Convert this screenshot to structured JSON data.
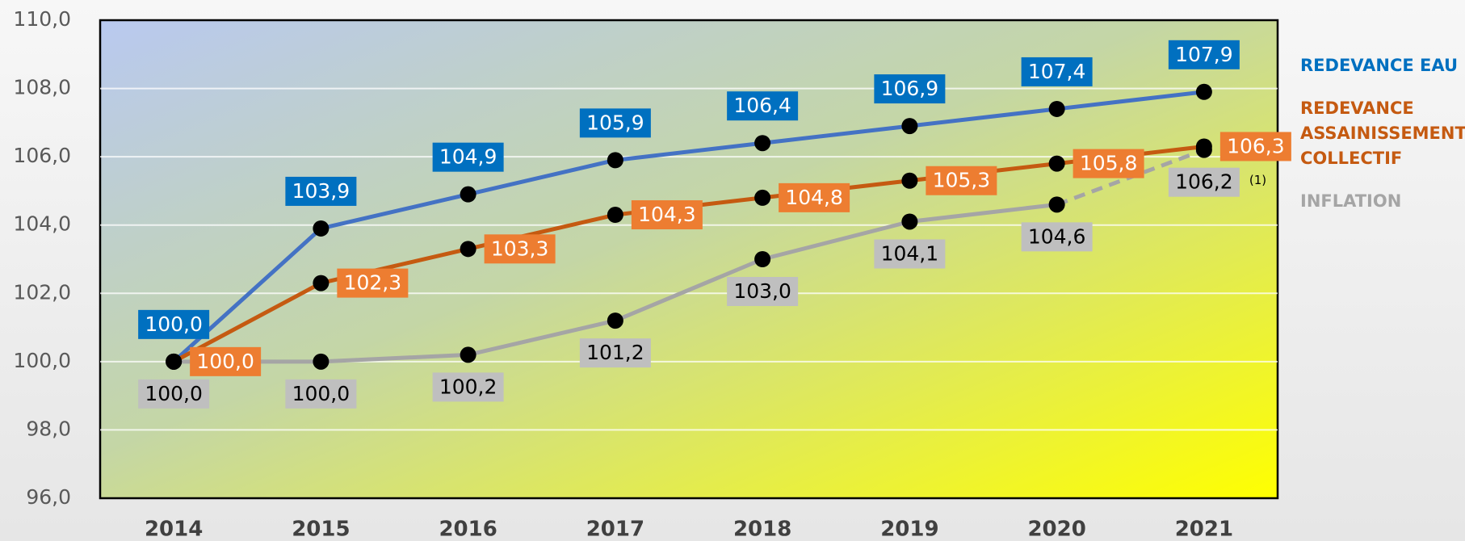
{
  "chart_data": {
    "type": "line",
    "categories": [
      "2014",
      "2015",
      "2016",
      "2017",
      "2018",
      "2019",
      "2020",
      "2021"
    ],
    "series": [
      {
        "name": "REDEVANCE EAU",
        "color": "#4472c4",
        "label_color": "#0070c0",
        "label_position": "above",
        "values": [
          100.0,
          103.9,
          104.9,
          105.9,
          106.4,
          106.9,
          107.4,
          107.9
        ],
        "value_labels": [
          "100,0",
          "103,9",
          "104,9",
          "105,9",
          "106,4",
          "106,9",
          "107,4",
          "107,9"
        ]
      },
      {
        "name": "REDEVANCE ASSAINISSEMENT COLLECTIF",
        "color": "#c55a11",
        "label_color": "#ed7d31",
        "label_position": "right",
        "values": [
          100.0,
          102.3,
          103.3,
          104.3,
          104.8,
          105.3,
          105.8,
          106.3
        ],
        "value_labels": [
          "100,0",
          "102,3",
          "103,3",
          "104,3",
          "104,8",
          "105,3",
          "105,8",
          "106,3"
        ]
      },
      {
        "name": "INFLATION",
        "color": "#a5a5a5",
        "label_color": "#bfbfbf",
        "label_position": "below",
        "dashed_last_segment": true,
        "note": "(1)",
        "values": [
          100.0,
          100.0,
          100.2,
          101.2,
          103.0,
          104.1,
          104.6,
          106.2
        ],
        "value_labels": [
          "100,0",
          "100,0",
          "100,2",
          "101,2",
          "103,0",
          "104,1",
          "104,6",
          "106,2"
        ]
      }
    ],
    "ylim": [
      96,
      110
    ],
    "yticks": [
      {
        "value": 96,
        "label": "96,0"
      },
      {
        "value": 98,
        "label": "98,0"
      },
      {
        "value": 100,
        "label": "100,0"
      },
      {
        "value": 102,
        "label": "102,0"
      },
      {
        "value": 104,
        "label": "104,0"
      },
      {
        "value": 106,
        "label": "106,0"
      },
      {
        "value": 108,
        "label": "108,0"
      },
      {
        "value": 110,
        "label": "110,0"
      }
    ],
    "grid": true,
    "legend": "right"
  }
}
